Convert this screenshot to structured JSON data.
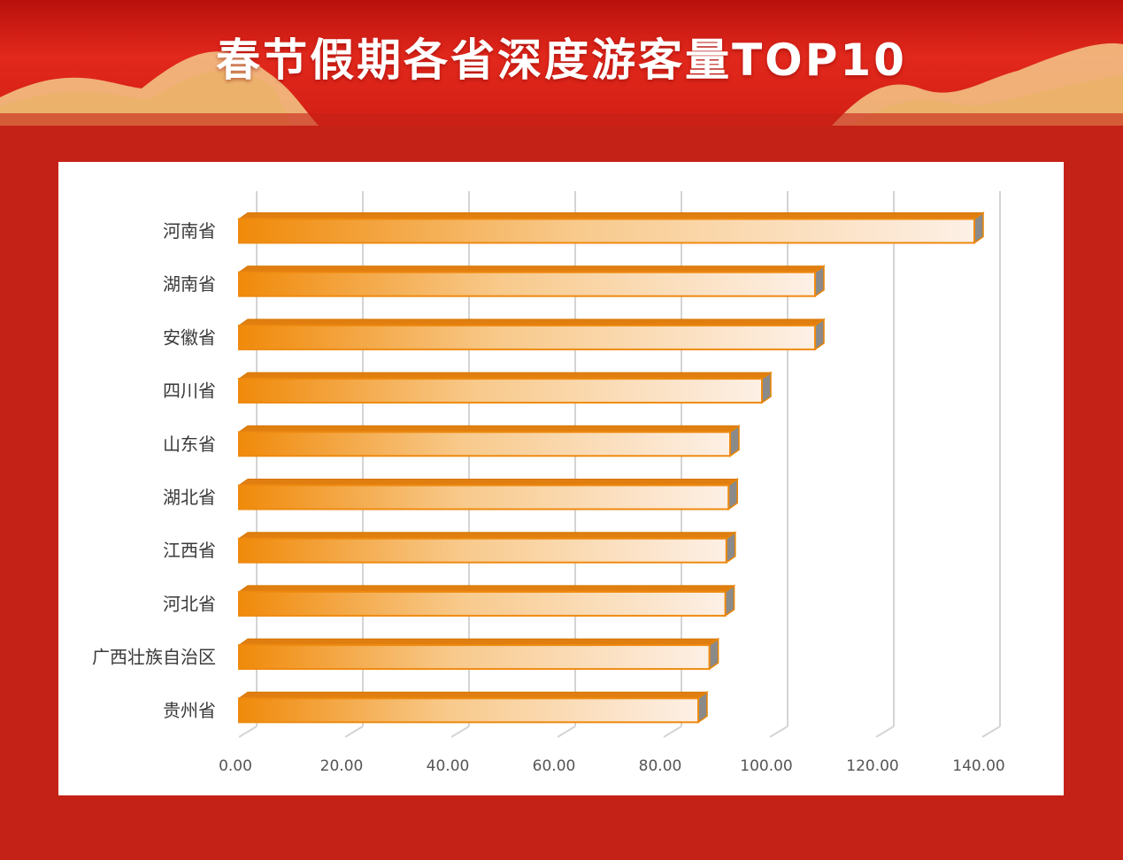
{
  "title": "春节假期各省深度游客量TOP10",
  "colors": {
    "background": "#c42216",
    "bar_dark": "#f08a0a",
    "bar_light": "#fdf0e6",
    "bar_top": "#e07f10",
    "bar_end": "#8a8a8a",
    "grid": "#d4d4d4"
  },
  "chart_data": {
    "type": "bar",
    "orientation": "horizontal",
    "categories": [
      "河南省",
      "湖南省",
      "安徽省",
      "四川省",
      "山东省",
      "湖北省",
      "江西省",
      "河北省",
      "广西壮族自治区",
      "贵州省"
    ],
    "values": [
      138.5,
      108.5,
      108.5,
      98.5,
      92.5,
      92.2,
      91.8,
      91.6,
      88.6,
      86.5
    ],
    "xticks": [
      "0.00",
      "20.00",
      "40.00",
      "60.00",
      "80.00",
      "100.00",
      "120.00",
      "140.00"
    ],
    "xlim": [
      0,
      140
    ],
    "grid": true,
    "legend": "none",
    "title": "",
    "xlabel": "",
    "ylabel": ""
  }
}
